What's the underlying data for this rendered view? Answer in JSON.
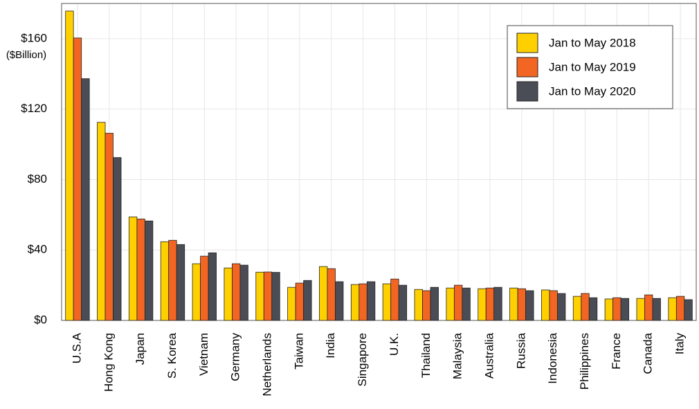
{
  "chart_data": {
    "type": "bar",
    "y_label": "($Billion)",
    "categories": [
      "U.S.A",
      "Hong Kong",
      "Japan",
      "S. Korea",
      "Vietnam",
      "Germany",
      "Netherlands",
      "Taiwan",
      "India",
      "Singapore",
      "U.K.",
      "Thailand",
      "Malaysia",
      "Australia",
      "Russia",
      "Indonesia",
      "Philippines",
      "France",
      "Canada",
      "Italy"
    ],
    "series": [
      {
        "name": "Jan to May 2018",
        "color": "#ffd000",
        "values": [
          175.7,
          112.5,
          58.8,
          44.7,
          32.2,
          29.8,
          27.4,
          18.8,
          30.6,
          20.4,
          20.8,
          17.6,
          18.4,
          18.0,
          18.4,
          17.3,
          13.7,
          12.2,
          12.5,
          12.9
        ]
      },
      {
        "name": "Jan to May 2019",
        "color": "#f26522",
        "values": [
          160.4,
          106.3,
          57.6,
          45.5,
          36.5,
          32.2,
          27.5,
          21.2,
          29.4,
          20.8,
          23.5,
          16.9,
          20.0,
          18.4,
          18.0,
          16.9,
          15.3,
          12.9,
          14.5,
          13.7
        ]
      },
      {
        "name": "Jan to May 2020",
        "color": "#4a4d55",
        "values": [
          137.3,
          92.5,
          56.5,
          43.1,
          38.4,
          31.4,
          27.3,
          22.7,
          22.0,
          22.0,
          20.0,
          18.8,
          18.4,
          18.8,
          16.9,
          15.3,
          12.9,
          12.5,
          12.5,
          11.8
        ]
      }
    ],
    "ylim": [
      0,
      180
    ],
    "yticks": [
      {
        "value": 0,
        "label": "$0"
      },
      {
        "value": 40,
        "label": "$40"
      },
      {
        "value": 80,
        "label": "$80"
      },
      {
        "value": 120,
        "label": "$120"
      },
      {
        "value": 160,
        "label": "$160"
      }
    ],
    "grid": true,
    "legend": "upper right"
  }
}
